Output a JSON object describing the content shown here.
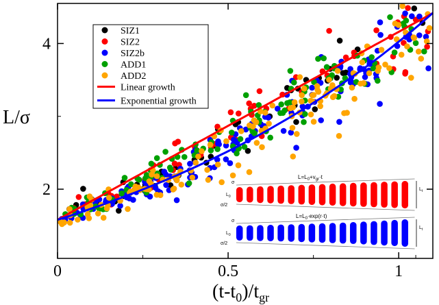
{
  "chart_data": {
    "type": "scatter",
    "xlabel": "(t-t",
    "xlabel_sub": "0",
    "xlabel_tail": ")/t",
    "xlabel_sub2": "gr",
    "ylabel": "L/σ",
    "xlim": [
      0,
      1.1
    ],
    "ylim": [
      1.05,
      4.55
    ],
    "xticks": [
      0,
      0.5,
      1
    ],
    "xtick_labels": [
      "0",
      "0.5",
      "1"
    ],
    "yticks": [
      2,
      4
    ],
    "ytick_labels": [
      "2",
      "4"
    ],
    "legend_placement": "top-left",
    "series": [
      {
        "name": "SIZ1",
        "color": "#000000",
        "kind": "points",
        "seed": 11,
        "n": 55
      },
      {
        "name": "SIZ2",
        "color": "#ff0000",
        "kind": "points",
        "seed": 23,
        "n": 70
      },
      {
        "name": "SIZ2b",
        "color": "#0000ff",
        "kind": "points",
        "seed": 37,
        "n": 150
      },
      {
        "name": "ADD1",
        "color": "#00a000",
        "kind": "points",
        "seed": 41,
        "n": 120
      },
      {
        "name": "ADD2",
        "color": "#ffa500",
        "kind": "points",
        "seed": 53,
        "n": 150
      }
    ],
    "fits": [
      {
        "name": "Linear growth",
        "color": "#ff0000",
        "formula": "linear",
        "L0": 1.58,
        "v": 2.58
      },
      {
        "name": "Exponential growth",
        "color": "#0000ff",
        "formula": "exponential",
        "L0": 1.58,
        "r": 0.935
      }
    ],
    "inset": {
      "linear_formula": "L=L",
      "linear_formula_sub": "0",
      "linear_formula_tail": "+v",
      "linear_formula_sub2": "gr",
      "linear_formula_end": "·t",
      "exp_formula": "L=L",
      "exp_formula_sub": "0",
      "exp_formula_tail": "·exp(r·t)",
      "sigma": "σ",
      "L0_label": "L",
      "L0_sub": "0",
      "sigma_half": "σ/2",
      "Lt_label": "L",
      "Lt_sub": "t",
      "linear_color": "#ff0000",
      "exp_color": "#0000ff",
      "n_bars": 17
    }
  }
}
